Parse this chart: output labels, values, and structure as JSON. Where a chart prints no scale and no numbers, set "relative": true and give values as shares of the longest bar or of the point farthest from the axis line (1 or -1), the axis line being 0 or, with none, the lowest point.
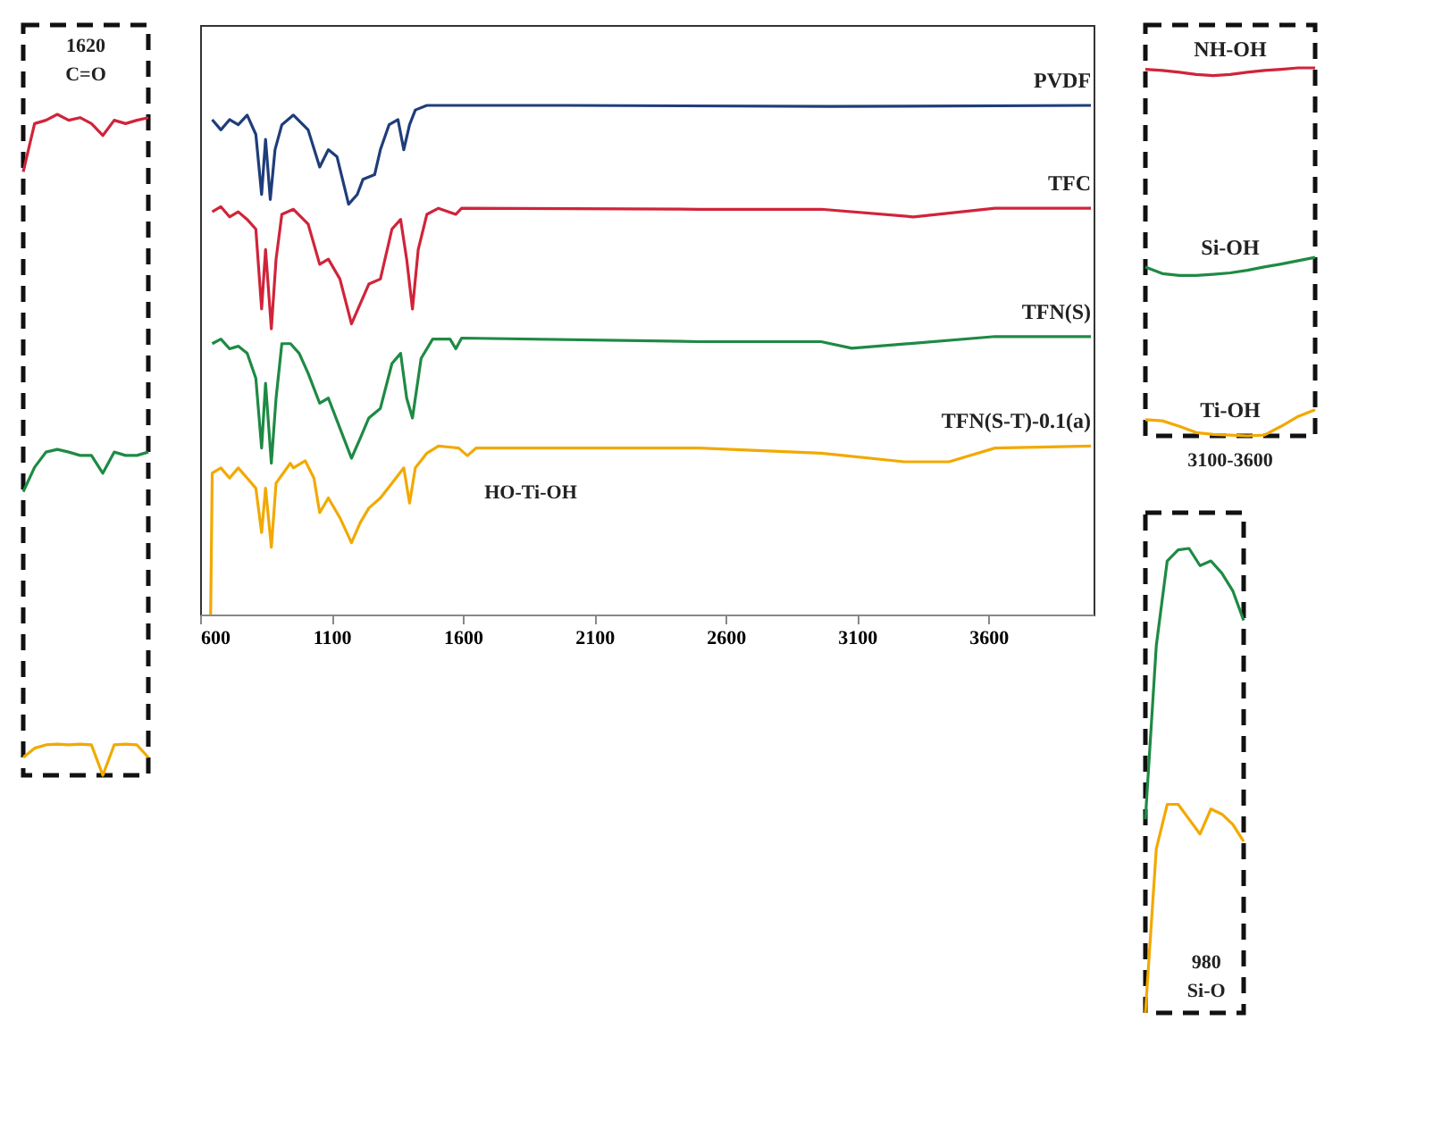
{
  "chart_data": [
    {
      "type": "line",
      "relative": true,
      "categories": [
        null,
        null,
        null,
        null,
        null,
        null,
        null,
        null,
        null,
        null,
        null,
        null
      ],
      "tick_labels": false,
      "annotations": [
        "1620",
        "C=O"
      ],
      "series": [
        {
          "color": "#d0243a",
          "values": [
            0.913,
            0.986,
            0.991,
            1.0,
            0.991,
            0.995,
            0.986,
            0.968,
            0.991,
            0.986,
            0.991,
            0.995
          ]
        },
        {
          "color": "#1e8a44",
          "values": [
            0.429,
            0.466,
            0.489,
            0.493,
            0.489,
            0.484,
            0.484,
            0.457,
            0.489,
            0.484,
            0.484,
            0.489
          ]
        },
        {
          "color": "#f2a900",
          "values": [
            0.027,
            0.041,
            0.046,
            0.047,
            0.046,
            0.047,
            0.046,
            0.0,
            0.046,
            0.047,
            0.046,
            0.027
          ]
        }
      ]
    },
    {
      "type": "line",
      "relative": true,
      "xlim": [
        600,
        4000
      ],
      "xticks": [
        600,
        1100,
        1600,
        2100,
        2600,
        3100,
        3600
      ],
      "tick_labels": "x",
      "annotations": [
        "HO-Ti-OH"
      ],
      "series": [
        {
          "name": "PVDF",
          "color": "#1f3d7a",
          "x": [
            646,
            679,
            712,
            745,
            779,
            812,
            834,
            849,
            867,
            885,
            911,
            955,
            1011,
            1055,
            1088,
            1121,
            1165,
            1198,
            1220,
            1264,
            1286,
            1319,
            1353,
            1375,
            1397,
            1419,
            1463,
            2000,
            3000,
            3990
          ],
          "values": [
            0.972,
            0.952,
            0.972,
            0.962,
            0.981,
            0.943,
            0.825,
            0.933,
            0.815,
            0.913,
            0.962,
            0.981,
            0.952,
            0.879,
            0.913,
            0.899,
            0.806,
            0.825,
            0.855,
            0.864,
            0.913,
            0.962,
            0.972,
            0.913,
            0.962,
            0.991,
            1.0,
            1.0,
            0.998,
            1.0
          ]
        },
        {
          "name": "TFC",
          "color": "#d0243a",
          "x": [
            646,
            679,
            712,
            745,
            779,
            812,
            834,
            849,
            871,
            889,
            911,
            955,
            1011,
            1055,
            1088,
            1132,
            1176,
            1209,
            1242,
            1286,
            1330,
            1363,
            1386,
            1408,
            1430,
            1463,
            1507,
            1573,
            1595,
            2500,
            2963,
            3314,
            3625,
            3990
          ],
          "values": [
            0.791,
            0.801,
            0.781,
            0.791,
            0.776,
            0.757,
            0.6,
            0.717,
            0.561,
            0.698,
            0.786,
            0.796,
            0.767,
            0.688,
            0.698,
            0.659,
            0.571,
            0.61,
            0.649,
            0.659,
            0.757,
            0.776,
            0.698,
            0.6,
            0.717,
            0.786,
            0.798,
            0.786,
            0.798,
            0.796,
            0.796,
            0.781,
            0.798,
            0.798
          ]
        },
        {
          "name": "TFN(S)",
          "color": "#1e8a44",
          "x": [
            646,
            679,
            712,
            745,
            779,
            812,
            834,
            849,
            871,
            889,
            911,
            944,
            977,
            1011,
            1055,
            1088,
            1132,
            1176,
            1209,
            1242,
            1286,
            1330,
            1363,
            1386,
            1408,
            1441,
            1485,
            1551,
            1573,
            1595,
            2500,
            2963,
            3080,
            3625,
            3990
          ],
          "values": [
            0.532,
            0.541,
            0.522,
            0.527,
            0.513,
            0.464,
            0.327,
            0.454,
            0.297,
            0.425,
            0.532,
            0.532,
            0.513,
            0.474,
            0.415,
            0.425,
            0.366,
            0.307,
            0.346,
            0.386,
            0.405,
            0.493,
            0.513,
            0.425,
            0.386,
            0.503,
            0.541,
            0.541,
            0.522,
            0.543,
            0.536,
            0.536,
            0.523,
            0.546,
            0.546
          ]
        },
        {
          "name": "TFN(S-T)-0.1(a)",
          "color": "#f2a900",
          "x": [
            640,
            646,
            679,
            712,
            745,
            779,
            812,
            834,
            849,
            871,
            889,
            943,
            955,
            1000,
            1033,
            1055,
            1088,
            1132,
            1176,
            1209,
            1242,
            1286,
            1330,
            1375,
            1397,
            1419,
            1463,
            1507,
            1584,
            1617,
            1650,
            2500,
            2963,
            3280,
            3450,
            3625,
            3990
          ],
          "values": [
            0.0,
            0.278,
            0.288,
            0.268,
            0.288,
            0.268,
            0.248,
            0.161,
            0.248,
            0.132,
            0.258,
            0.297,
            0.288,
            0.302,
            0.268,
            0.2,
            0.229,
            0.19,
            0.141,
            0.18,
            0.209,
            0.229,
            0.258,
            0.288,
            0.219,
            0.288,
            0.317,
            0.331,
            0.327,
            0.312,
            0.327,
            0.327,
            0.317,
            0.3,
            0.3,
            0.327,
            0.331
          ]
        }
      ]
    },
    {
      "type": "line",
      "relative": true,
      "categories": [
        null,
        null,
        null,
        null,
        null,
        null,
        null,
        null,
        null,
        null,
        null
      ],
      "tick_labels": false,
      "annotations": [
        "3100-3600"
      ],
      "series": [
        {
          "name": "NH-OH",
          "color": "#d0243a",
          "values": [
            0.996,
            0.993,
            0.988,
            0.982,
            0.979,
            0.982,
            0.988,
            0.993,
            0.996,
            1.0,
            1.0
          ]
        },
        {
          "name": "Si-OH",
          "color": "#1e8a44",
          "values": [
            0.459,
            0.441,
            0.436,
            0.436,
            0.439,
            0.443,
            0.45,
            0.459,
            0.467,
            0.476,
            0.485
          ]
        },
        {
          "name": "Ti-OH",
          "color": "#f2a900",
          "values": [
            0.044,
            0.041,
            0.026,
            0.009,
            0.004,
            0.002,
            0.0,
            0.002,
            0.026,
            0.053,
            0.071
          ]
        }
      ]
    },
    {
      "type": "line",
      "relative": true,
      "categories": [
        null,
        null,
        null,
        null,
        null,
        null,
        null,
        null,
        null,
        null
      ],
      "tick_labels": false,
      "annotations": [
        "980",
        "Si-O"
      ],
      "series": [
        {
          "color": "#1e8a44",
          "values": [
            0.417,
            0.791,
            0.973,
            0.997,
            1.0,
            0.963,
            0.973,
            0.947,
            0.909,
            0.845
          ]
        },
        {
          "color": "#f2a900",
          "values": [
            0.0,
            0.353,
            0.449,
            0.449,
            0.417,
            0.385,
            0.439,
            0.428,
            0.406,
            0.369
          ]
        }
      ]
    }
  ]
}
